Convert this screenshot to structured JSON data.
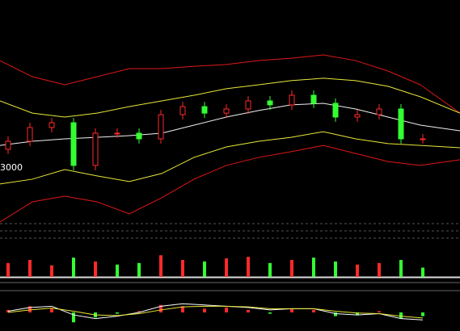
{
  "chart_data": [
    {
      "type": "candlestick",
      "xlim": [
        0,
        569
      ],
      "ylim": [
        2770,
        3770
      ],
      "yticks": [
        3000
      ],
      "up_color": "#ff2a2a",
      "down_color": "#33ff33",
      "x": [
        10,
        37,
        64,
        91,
        118,
        145,
        172,
        199,
        226,
        253,
        280,
        307,
        334,
        361,
        388,
        415,
        442,
        469,
        496,
        523
      ],
      "open": [
        3085,
        3122,
        3185,
        3207,
        3011,
        3159,
        3159,
        3133,
        3244,
        3281,
        3251,
        3270,
        3307,
        3289,
        3333,
        3296,
        3233,
        3244,
        3270,
        3133
      ],
      "high": [
        3144,
        3207,
        3229,
        3229,
        3181,
        3181,
        3181,
        3266,
        3303,
        3303,
        3292,
        3329,
        3329,
        3355,
        3355,
        3318,
        3266,
        3292,
        3292,
        3155
      ],
      "low": [
        3063,
        3100,
        3163,
        2989,
        2989,
        3137,
        3111,
        3111,
        3222,
        3229,
        3229,
        3248,
        3266,
        3266,
        3274,
        3211,
        3211,
        3222,
        3111,
        3111
      ],
      "close": [
        3122,
        3185,
        3207,
        3011,
        3159,
        3159,
        3133,
        3244,
        3281,
        3251,
        3270,
        3307,
        3289,
        3333,
        3296,
        3233,
        3244,
        3270,
        3133,
        3133
      ],
      "bands": {
        "x": [
          0,
          40,
          80,
          120,
          160,
          200,
          240,
          280,
          320,
          360,
          400,
          440,
          480,
          520,
          569
        ],
        "series": [
          {
            "color": "#e01818",
            "values": [
              3492,
              3418,
              3381,
              3418,
              3455,
              3455,
              3466,
              3474,
              3492,
              3503,
              3518,
              3492,
              3444,
              3381,
              3251
            ]
          },
          {
            "color": "#e8e83a",
            "values": [
              3307,
              3251,
              3233,
              3251,
              3281,
              3307,
              3333,
              3363,
              3381,
              3400,
              3411,
              3400,
              3374,
              3326,
              3251
            ]
          },
          {
            "color": "#f0f0f0",
            "values": [
              3103,
              3122,
              3133,
              3140,
              3148,
              3159,
              3196,
              3233,
              3263,
              3289,
              3296,
              3270,
              3233,
              3196,
              3170
            ]
          },
          {
            "color": "#e8e83a",
            "values": [
              2926,
              2948,
              2992,
              2963,
              2937,
              2974,
              3048,
              3096,
              3122,
              3140,
              3166,
              3133,
              3111,
              3103,
              3092
            ]
          },
          {
            "color": "#e01818",
            "values": [
              2751,
              2844,
              2870,
              2844,
              2789,
              2863,
              2948,
              3011,
              3048,
              3074,
              3103,
              3066,
              3029,
              3011,
              3037
            ]
          }
        ]
      }
    },
    {
      "type": "bar",
      "xlim": [
        0,
        569
      ],
      "ylim": [
        0,
        45
      ],
      "x": [
        10,
        37,
        64,
        91,
        118,
        145,
        172,
        199,
        226,
        253,
        280,
        307,
        334,
        361,
        388,
        415,
        442,
        469,
        496,
        523
      ],
      "values": [
        18,
        22,
        15,
        25,
        20,
        16,
        18,
        28,
        22,
        20,
        24,
        26,
        18,
        22,
        25,
        20,
        16,
        18,
        22,
        12
      ],
      "colors": [
        "#ff2a2a",
        "#ff2a2a",
        "#ff2a2a",
        "#33ff33",
        "#ff2a2a",
        "#33ff33",
        "#33ff33",
        "#ff2a2a",
        "#ff2a2a",
        "#33ff33",
        "#ff2a2a",
        "#ff2a2a",
        "#33ff33",
        "#ff2a2a",
        "#33ff33",
        "#33ff33",
        "#ff2a2a",
        "#ff2a2a",
        "#33ff33",
        "#33ff33"
      ]
    },
    {
      "type": "macd",
      "xlim": [
        0,
        569
      ],
      "ylim": [
        -1.5,
        1.5
      ],
      "up_color": "#ff2a2a",
      "down_color": "#33ff33",
      "x": [
        10,
        37,
        64,
        91,
        118,
        145,
        172,
        199,
        226,
        253,
        280,
        307,
        334,
        361,
        388,
        415,
        442,
        469,
        496,
        523
      ],
      "values": [
        0.2,
        0.5,
        0.3,
        -0.8,
        -0.4,
        -0.1,
        0.1,
        0.6,
        0.5,
        0.3,
        0.4,
        0.2,
        -0.1,
        0.3,
        0.2,
        -0.3,
        -0.2,
        0.1,
        -0.5,
        -0.3
      ],
      "series": [
        {
          "color": "#ffffff",
          "values": [
            0.1,
            0.4,
            0.5,
            -0.2,
            -0.5,
            -0.3,
            0,
            0.5,
            0.7,
            0.6,
            0.5,
            0.4,
            0.2,
            0.3,
            0.3,
            -0.1,
            -0.2,
            -0.1,
            -0.5,
            -0.6
          ]
        },
        {
          "color": "#e8e83a",
          "values": [
            0,
            0.2,
            0.35,
            0.1,
            -0.2,
            -0.25,
            -0.1,
            0.2,
            0.45,
            0.5,
            0.5,
            0.45,
            0.3,
            0.3,
            0.3,
            0.1,
            -0.05,
            -0.1,
            -0.3,
            -0.45
          ]
        }
      ]
    }
  ]
}
